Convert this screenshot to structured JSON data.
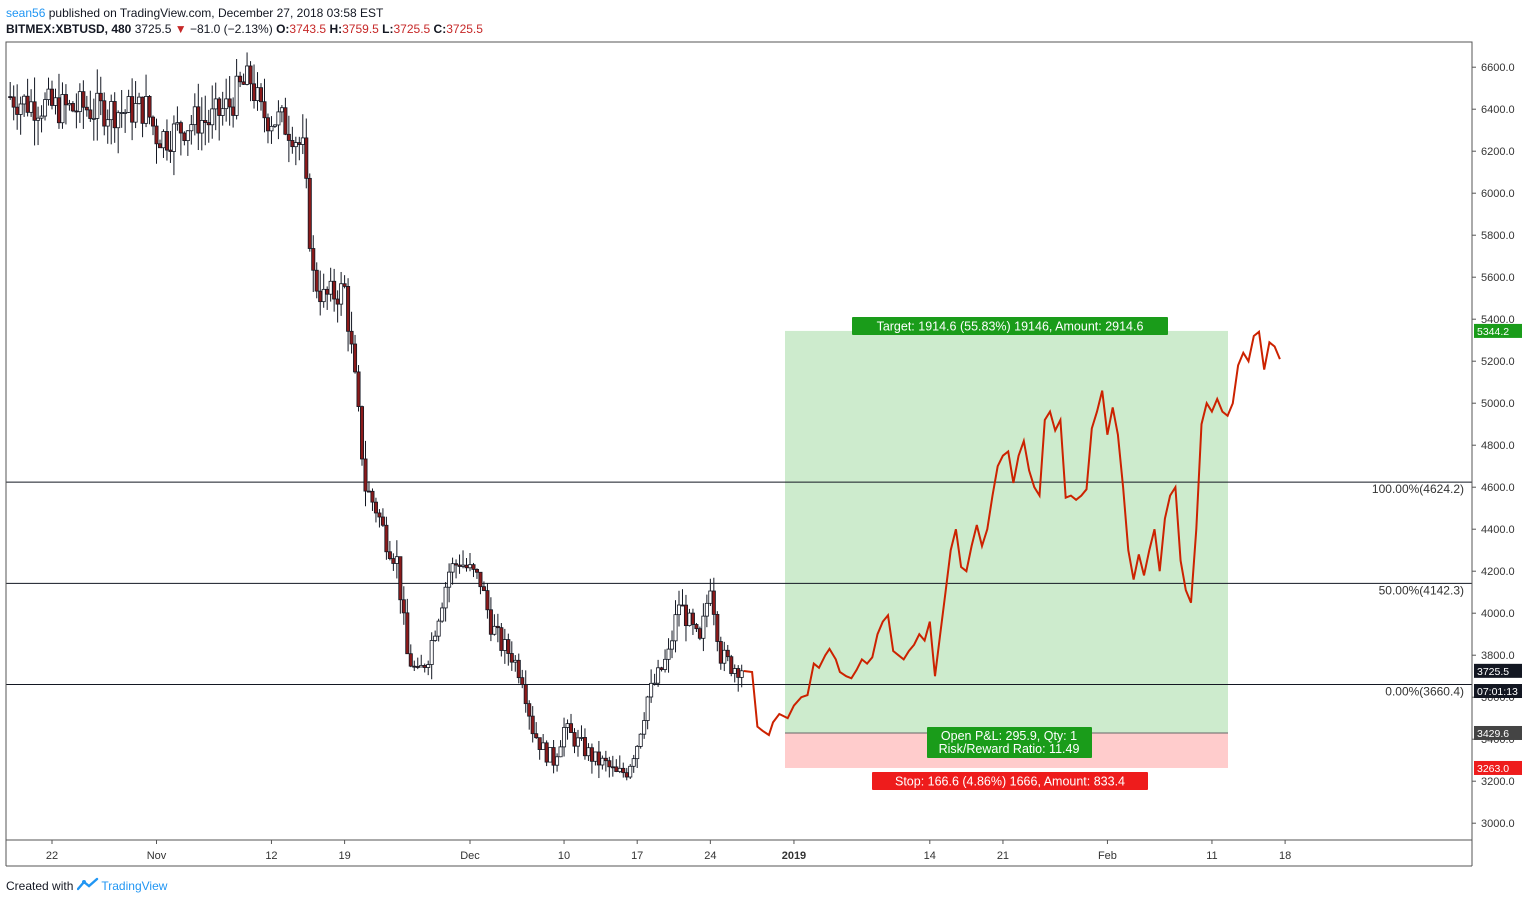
{
  "header": {
    "user": "sean56",
    "published": "published on TradingView.com, December 27, 2018 03:58 EST",
    "symbol": "BITMEX:XBTUSD, 480",
    "last": "3725.5",
    "change": "−81.0 (−2.13%)",
    "o_label": "O:",
    "o": "3743.5",
    "h_label": "H:",
    "h": "3759.5",
    "l_label": "L:",
    "l": "3725.5",
    "c_label": "C:",
    "c": "3725.5"
  },
  "footer": {
    "created_with": "Created with",
    "brand": "TradingView"
  },
  "colors": {
    "candle": "#131722",
    "down_body": "#8b1a1a",
    "projection": "#cc2200",
    "profit_zone": "#cdebcd",
    "loss_zone": "#ffcccc",
    "target_label": "#1a9c1a",
    "stop_label": "#ee1c1c",
    "pnl_label": "#1a9c1a"
  },
  "chart_data": {
    "type": "candlestick",
    "y_axis": {
      "range": [
        2920,
        6720
      ],
      "ticks": [
        "3000.0",
        "3200.0",
        "3400.0",
        "3600.0",
        "3800.0",
        "4000.0",
        "4200.0",
        "4400.0",
        "4600.0",
        "4800.0",
        "5000.0",
        "5200.0",
        "5400.0",
        "5600.0",
        "5800.0",
        "6000.0",
        "6200.0",
        "6400.0",
        "6600.0"
      ]
    },
    "x_axis": {
      "ticks": [
        {
          "label": "22",
          "day": 0
        },
        {
          "label": "Nov",
          "day": 10
        },
        {
          "label": "12",
          "day": 21
        },
        {
          "label": "19",
          "day": 28
        },
        {
          "label": "Dec",
          "day": 40
        },
        {
          "label": "10",
          "day": 49
        },
        {
          "label": "17",
          "day": 56
        },
        {
          "label": "24",
          "day": 63
        },
        {
          "label": "2019",
          "day": 71,
          "bold": true
        },
        {
          "label": "14",
          "day": 84
        },
        {
          "label": "21",
          "day": 91
        },
        {
          "label": "Feb",
          "day": 101
        },
        {
          "label": "11",
          "day": 111
        },
        {
          "label": "18",
          "day": 118
        }
      ]
    },
    "candles_days": [
      [
        -4,
        6460
      ],
      [
        -3,
        6440
      ],
      [
        -2,
        6425
      ],
      [
        -1,
        6420
      ],
      [
        0,
        6410
      ],
      [
        1,
        6405
      ],
      [
        2,
        6400
      ],
      [
        3,
        6410
      ],
      [
        4,
        6395
      ],
      [
        5,
        6400
      ],
      [
        6,
        6395
      ],
      [
        7,
        6390
      ],
      [
        8,
        6400
      ],
      [
        9,
        6405
      ],
      [
        10,
        6280
      ],
      [
        11,
        6270
      ],
      [
        12,
        6300
      ],
      [
        13,
        6330
      ],
      [
        14,
        6350
      ],
      [
        15,
        6340
      ],
      [
        16,
        6380
      ],
      [
        17,
        6420
      ],
      [
        18,
        6500
      ],
      [
        19,
        6540
      ],
      [
        20,
        6380
      ],
      [
        21,
        6360
      ],
      [
        22,
        6340
      ],
      [
        23,
        6300
      ],
      [
        24,
        6200
      ],
      [
        25,
        5600
      ],
      [
        26,
        5500
      ],
      [
        27,
        5520
      ],
      [
        28,
        5540
      ],
      [
        29,
        5100
      ],
      [
        30,
        4600
      ],
      [
        31,
        4500
      ],
      [
        32,
        4350
      ],
      [
        33,
        4250
      ],
      [
        34,
        3800
      ],
      [
        35,
        3700
      ],
      [
        36,
        3800
      ],
      [
        37,
        4000
      ],
      [
        38,
        4200
      ],
      [
        39,
        4250
      ],
      [
        40,
        4200
      ],
      [
        41,
        4150
      ],
      [
        42,
        3950
      ],
      [
        43,
        3850
      ],
      [
        44,
        3800
      ],
      [
        45,
        3700
      ],
      [
        46,
        3450
      ],
      [
        47,
        3350
      ],
      [
        48,
        3300
      ],
      [
        49,
        3450
      ],
      [
        50,
        3400
      ],
      [
        51,
        3350
      ],
      [
        52,
        3300
      ],
      [
        53,
        3280
      ],
      [
        54,
        3230
      ],
      [
        55,
        3250
      ],
      [
        56,
        3380
      ],
      [
        57,
        3600
      ],
      [
        58,
        3700
      ],
      [
        59,
        3800
      ],
      [
        60,
        4050
      ],
      [
        61,
        3950
      ],
      [
        62,
        3850
      ],
      [
        63,
        4150
      ],
      [
        64,
        3800
      ],
      [
        65,
        3750
      ],
      [
        66,
        3740
      ]
    ],
    "projection": [
      [
        66.2,
        3725
      ],
      [
        67,
        3720
      ],
      [
        67.5,
        3460
      ],
      [
        68,
        3440
      ],
      [
        68.6,
        3420
      ],
      [
        69,
        3480
      ],
      [
        69.6,
        3520
      ],
      [
        70.4,
        3500
      ],
      [
        71,
        3560
      ],
      [
        71.7,
        3600
      ],
      [
        72.3,
        3610
      ],
      [
        72.9,
        3760
      ],
      [
        73.4,
        3740
      ],
      [
        74,
        3800
      ],
      [
        74.4,
        3830
      ],
      [
        75,
        3780
      ],
      [
        75.4,
        3720
      ],
      [
        76,
        3700
      ],
      [
        76.5,
        3690
      ],
      [
        77,
        3730
      ],
      [
        77.5,
        3780
      ],
      [
        78,
        3760
      ],
      [
        78.5,
        3790
      ],
      [
        79,
        3900
      ],
      [
        79.5,
        3960
      ],
      [
        80,
        3990
      ],
      [
        80.5,
        3820
      ],
      [
        81,
        3800
      ],
      [
        81.5,
        3780
      ],
      [
        82,
        3820
      ],
      [
        82.5,
        3850
      ],
      [
        83,
        3900
      ],
      [
        83.5,
        3870
      ],
      [
        84,
        3960
      ],
      [
        84.5,
        3700
      ],
      [
        85,
        3900
      ],
      [
        85.5,
        4100
      ],
      [
        86,
        4300
      ],
      [
        86.5,
        4400
      ],
      [
        87,
        4220
      ],
      [
        87.5,
        4200
      ],
      [
        88,
        4320
      ],
      [
        88.5,
        4420
      ],
      [
        89,
        4320
      ],
      [
        89.5,
        4400
      ],
      [
        90,
        4560
      ],
      [
        90.5,
        4700
      ],
      [
        91,
        4750
      ],
      [
        91.5,
        4770
      ],
      [
        92,
        4620
      ],
      [
        92.5,
        4750
      ],
      [
        93,
        4820
      ],
      [
        93.5,
        4680
      ],
      [
        94,
        4600
      ],
      [
        94.5,
        4560
      ],
      [
        95,
        4920
      ],
      [
        95.5,
        4960
      ],
      [
        96,
        4870
      ],
      [
        96.5,
        4920
      ],
      [
        97,
        4550
      ],
      [
        97.5,
        4560
      ],
      [
        98,
        4540
      ],
      [
        98.5,
        4560
      ],
      [
        99,
        4590
      ],
      [
        99.5,
        4880
      ],
      [
        100,
        4960
      ],
      [
        100.5,
        5060
      ],
      [
        101,
        4850
      ],
      [
        101.5,
        4980
      ],
      [
        102,
        4850
      ],
      [
        102.5,
        4600
      ],
      [
        103,
        4300
      ],
      [
        103.5,
        4160
      ],
      [
        104,
        4280
      ],
      [
        104.5,
        4180
      ],
      [
        105,
        4300
      ],
      [
        105.5,
        4400
      ],
      [
        106,
        4200
      ],
      [
        106.5,
        4450
      ],
      [
        107,
        4560
      ],
      [
        107.5,
        4600
      ],
      [
        108,
        4250
      ],
      [
        108.5,
        4110
      ],
      [
        109,
        4050
      ],
      [
        109.5,
        4400
      ],
      [
        110,
        4900
      ],
      [
        110.5,
        5000
      ],
      [
        111,
        4960
      ],
      [
        111.5,
        5020
      ],
      [
        112,
        4960
      ],
      [
        112.5,
        4940
      ],
      [
        113,
        5000
      ],
      [
        113.5,
        5180
      ],
      [
        114,
        5240
      ],
      [
        114.5,
        5200
      ],
      [
        115,
        5320
      ],
      [
        115.5,
        5340
      ],
      [
        116,
        5160
      ],
      [
        116.5,
        5290
      ],
      [
        117,
        5270
      ],
      [
        117.5,
        5210
      ]
    ],
    "fib_levels": [
      {
        "price": 4624.2,
        "label": "100.00%(4624.2)"
      },
      {
        "price": 4142.3,
        "label": "50.00%(4142.3)"
      },
      {
        "price": 3660.4,
        "label": "0.00%(3660.4)"
      }
    ],
    "position": {
      "entry": 3429.6,
      "target": 5344.2,
      "stop": 3263.0,
      "target_label": "Target: 1914.6 (55.83%) 19146, Amount: 2914.6",
      "stop_label": "Stop: 166.6 (4.86%) 1666, Amount: 833.4",
      "pnl_label": "Open P&L: 295.9, Qty: 1",
      "rr_label": "Risk/Reward Ratio: 11.49"
    },
    "price_tags": [
      {
        "price": 5344.2,
        "label": "5344.2",
        "color": "#1a9c1a"
      },
      {
        "price": 3725.5,
        "label": "3725.5",
        "color": "#131722"
      },
      {
        "price": 3629.5,
        "label": "07:01:13",
        "color": "#131722"
      },
      {
        "price": 3429.6,
        "label": "3429.6",
        "color": "#444444"
      },
      {
        "price": 3263.0,
        "label": "3263.0",
        "color": "#ee1c1c"
      }
    ]
  }
}
